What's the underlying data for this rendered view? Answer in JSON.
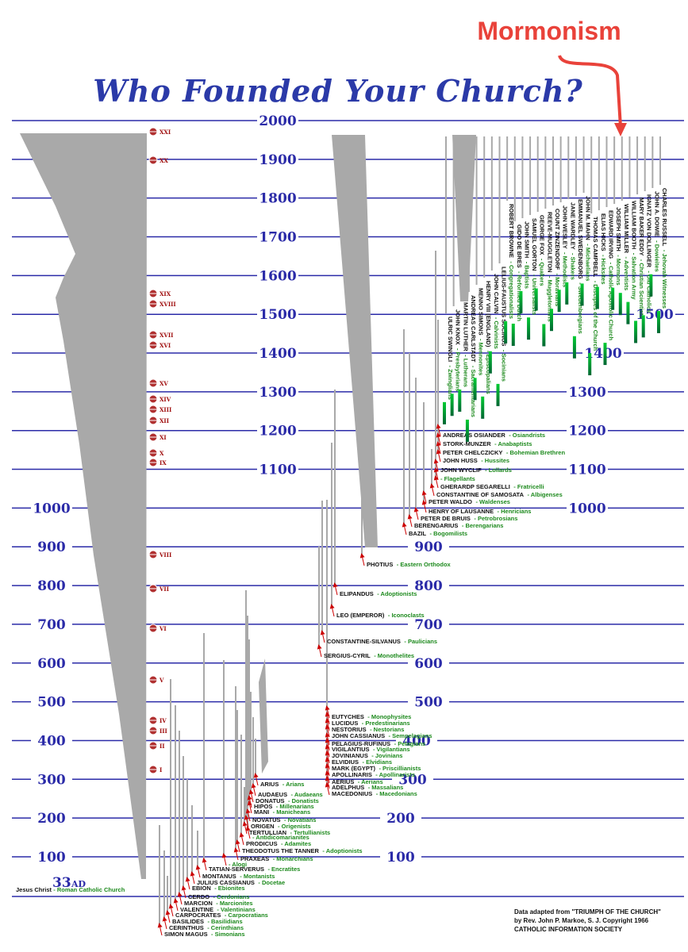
{
  "header": {
    "title": "Who Founded Your Church?",
    "annotation": "Mormonism"
  },
  "years": [
    "2000",
    "1900",
    "1800",
    "1700",
    "1600",
    "1500",
    "1400",
    "1300",
    "1200",
    "1100",
    "1000",
    "900",
    "800",
    "700",
    "600",
    "500",
    "400",
    "300",
    "200",
    "100"
  ],
  "start": {
    "year": "33",
    "unit": "AD",
    "founder": "Jesus Christ",
    "church": "- Roman Catholic Church"
  },
  "councils": [
    "XXI",
    "XX",
    "XIX",
    "XVIII",
    "XVII",
    "XVI",
    "XV",
    "XIV",
    "XIII",
    "XII",
    "XI",
    "X",
    "IX",
    "VIII",
    "VII",
    "VI",
    "V",
    "IV",
    "III",
    "II",
    "I"
  ],
  "founders": [
    {
      "name": "ARIUS",
      "sect": "- Arians"
    },
    {
      "name": "AUDAEUS",
      "sect": "- Audaeans"
    },
    {
      "name": "DONATUS",
      "sect": "- Donatists"
    },
    {
      "name": "HIPOS",
      "sect": "- Millenarians"
    },
    {
      "name": "MANI",
      "sect": "- Manicheans"
    },
    {
      "name": "NOVATUS",
      "sect": "- Novatians"
    },
    {
      "name": "ORIGEN",
      "sect": "- Origenists"
    },
    {
      "name": "TERTULLIAN",
      "sect": "- Tertullianists"
    },
    {
      "sect": "- Antidicomarianites"
    },
    {
      "name": "PRODICUS",
      "sect": "- Adamites"
    },
    {
      "name": "THEODOTUS THE TANNER",
      "sect": "- Adoptionists"
    },
    {
      "name": "PRAXEAS",
      "sect": "- Monarchians"
    },
    {
      "sect": "- Alogi"
    },
    {
      "name": "TATIAN-SERVERUS",
      "sect": "- Encratites"
    },
    {
      "name": "MONTANUS",
      "sect": "- Montanists"
    },
    {
      "name": "JULIUS CASSIANUS",
      "sect": "- Docetae"
    },
    {
      "name": "EBION",
      "sect": "- Ebionites"
    },
    {
      "name": "CERDO",
      "sect": "- Cerdonians"
    },
    {
      "name": "MARCION",
      "sect": "- Marcionites"
    },
    {
      "name": "VALENTINE",
      "sect": "- Valentinians"
    },
    {
      "name": "CARPOCRATES",
      "sect": "- Carpocratians"
    },
    {
      "name": "BASILIDES",
      "sect": "- Basilidians"
    },
    {
      "name": "CERINTHUS",
      "sect": "- Cerinthians"
    },
    {
      "name": "SIMON MAGUS",
      "sect": "- Simonians"
    },
    {
      "name": "EUTYCHES",
      "sect": "- Monophysites"
    },
    {
      "name": "LUCIDUS",
      "sect": "- Predestinarians"
    },
    {
      "name": "NESTORIUS",
      "sect": "- Nestorians"
    },
    {
      "name": "JOHN CASSIANUS",
      "sect": "- Sempelagians"
    },
    {
      "name": "PELAGIUS-RUFINUS",
      "sect": "- Pelagians"
    },
    {
      "name": "VIGILANTIUS",
      "sect": "- Vigilantians"
    },
    {
      "name": "JOVINIANUS",
      "sect": "- Jovinians"
    },
    {
      "name": "ELVIDIUS",
      "sect": "- Elvidians"
    },
    {
      "name": "MARK (EGYPT)",
      "sect": "- Priscillianists"
    },
    {
      "name": "APOLLINARIS",
      "sect": "- Apollinarists"
    },
    {
      "name": "AERIUS",
      "sect": "- Aerians"
    },
    {
      "name": "ADELPHUS",
      "sect": "- Massalians"
    },
    {
      "name": "MACEDONIUS",
      "sect": "- Macedonians"
    },
    {
      "name": "SERGIUS-CYRIL",
      "sect": "- Monothelites"
    },
    {
      "name": "CONSTANTINE-SILVANUS",
      "sect": "- Paulicians"
    },
    {
      "name": "LEO (EMPEROR)",
      "sect": "- Iconoclasts"
    },
    {
      "name": "ELIPANDUS",
      "sect": "- Adoptionists"
    },
    {
      "name": "PHOTIUS",
      "sect": "- Eastern Orthodox"
    },
    {
      "name": "ANDREAS OSIANDER",
      "sect": "- Osiandrists"
    },
    {
      "name": "STORK-MUNZER",
      "sect": "- Anabaptists"
    },
    {
      "name": "PETER CHELCZICKY",
      "sect": "- Bohemian Brethren"
    },
    {
      "name": "JOHN HUSS",
      "sect": "- Hussites"
    },
    {
      "name": "JOHN WYCLIF",
      "sect": "- Lollards"
    },
    {
      "sect": "- Flagellants"
    },
    {
      "name": "GHERARDP SEGARELLI",
      "sect": "- Fratricelli"
    },
    {
      "name": "CONSTANTINE OF SAMOSATA",
      "sect": "- Albigenses"
    },
    {
      "name": "PETER WALDO",
      "sect": "- Waldenses"
    },
    {
      "name": "HENRY OF LAUSANNE",
      "sect": "- Henricians"
    },
    {
      "name": "PETER DE BRUIS",
      "sect": "- Petrobrosians"
    },
    {
      "name": "BERENGARIUS",
      "sect": "- Berengarians"
    },
    {
      "name": "BAZIL",
      "sect": "- Bogomilists"
    }
  ],
  "reformers": [
    {
      "name": "ULRIC SWINGLI",
      "sect": "- Zwinglians"
    },
    {
      "name": "JOHN KNOX",
      "sect": "- Presbyterians"
    },
    {
      "name": "MARTIN LUTHER",
      "sect": "- Lutherans"
    },
    {
      "name": "ANDREAS CARLSTADT",
      "sect": "- Sacramentarians"
    },
    {
      "name": "MENNO SIMONS",
      "sect": "- Mennonites"
    },
    {
      "name": "HENRY VIII (ENGLAND)",
      "sect": "- Episcopalians"
    },
    {
      "name": "JOHN CALVIN",
      "sect": "- Calvinists"
    },
    {
      "name": "LELIUS-FAUSTUS SOCINUS",
      "sect": "- Socinians"
    },
    {
      "name": "ROBERT BROWNE",
      "sect": "- Congregationalists"
    },
    {
      "name": "GIDO DE BRES",
      "sect": "- Reformed Dutch"
    },
    {
      "name": "JOHN SMITH",
      "sect": "- Baptists"
    },
    {
      "name": "SAMUEL GORTON",
      "sect": "- Universalists"
    },
    {
      "name": "GEORGE FOX",
      "sect": "- Quakers"
    },
    {
      "name": "REEVE-MUGGLETON",
      "sect": "- Muggletonians"
    },
    {
      "name": "COUNT ZINZENDORF",
      "sect": "- Moravians"
    },
    {
      "name": "JOHN WESLEY",
      "sect": "- Methodists"
    },
    {
      "name": "JANE WARDLEY",
      "sect": "- Shakers"
    },
    {
      "name": "EMMANUEL SWEDENBORG",
      "sect": "- Swedenborgians"
    },
    {
      "name": "JOHN M. MAHN",
      "sect": "- Michaelians"
    },
    {
      "name": "THOMAS CAMPBELL",
      "sect": "- Disciples of the Church"
    },
    {
      "name": "ELIAS HICKS",
      "sect": "- Hicksites"
    },
    {
      "name": "EDWARD IRVING",
      "sect": "- Catholic Apostolic Church"
    },
    {
      "name": "JOSEPH SMITH",
      "sect": "- Mormons"
    },
    {
      "name": "WILLIAM MILLER",
      "sect": "- Adventists"
    },
    {
      "name": "WILLIAM BOOTH",
      "sect": "- Salvation Army"
    },
    {
      "name": "MARY BAKER EDDY",
      "sect": "- Christian Scientists"
    },
    {
      "name": "IGNATZ VON DOLLINGER",
      "sect": "- Old Catholics"
    },
    {
      "name": "JOHN A. DOWIE",
      "sect": "- Dowieites"
    },
    {
      "name": "CHARLES RUSSELL",
      "sect": "- Jehovah Witnesses"
    }
  ],
  "footer": [
    "Data adapted from \"TRIUMPH OF THE CHURCH\"",
    "by Rev. John P. Markoe, S. J. Copyright 1966",
    "CATHOLIC INFORMATION SOCIETY"
  ]
}
